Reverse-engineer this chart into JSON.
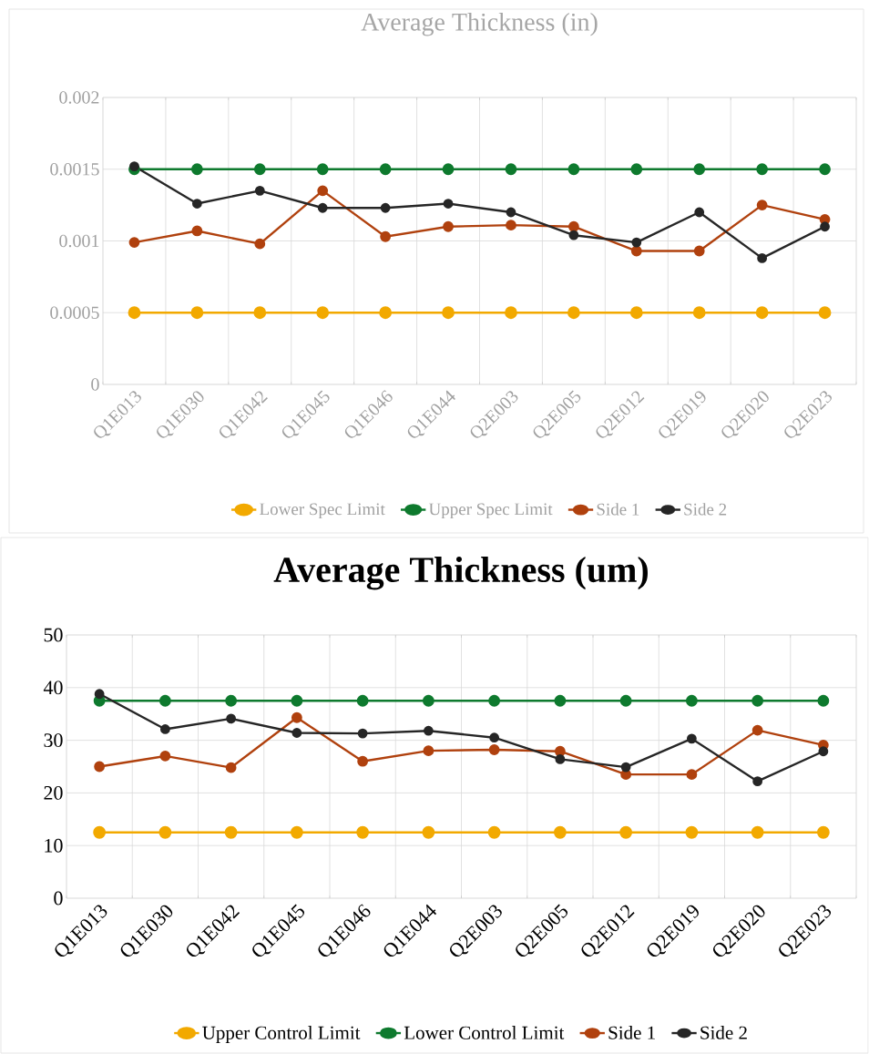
{
  "chart_data": [
    {
      "type": "line",
      "title": "Average Thickness (in)",
      "categories": [
        "Q1E013",
        "Q1E030",
        "Q1E042",
        "Q1E045",
        "Q1E046",
        "Q1E044",
        "Q2E003",
        "Q2E005",
        "Q2E012",
        "Q2E019",
        "Q2E020",
        "Q2E023"
      ],
      "series": [
        {
          "name": "Lower Spec Limit",
          "color": "#f2a900",
          "values": [
            0.0005,
            0.0005,
            0.0005,
            0.0005,
            0.0005,
            0.0005,
            0.0005,
            0.0005,
            0.0005,
            0.0005,
            0.0005,
            0.0005
          ]
        },
        {
          "name": "Upper Spec Limit",
          "color": "#0e7a2e",
          "values": [
            0.0015,
            0.0015,
            0.0015,
            0.0015,
            0.0015,
            0.0015,
            0.0015,
            0.0015,
            0.0015,
            0.0015,
            0.0015,
            0.0015
          ]
        },
        {
          "name": "Side 1",
          "color": "#b0410e",
          "values": [
            0.00099,
            0.00107,
            0.00098,
            0.00135,
            0.00103,
            0.0011,
            0.00111,
            0.0011,
            0.00093,
            0.00093,
            0.00125,
            0.00115
          ]
        },
        {
          "name": "Side 2",
          "color": "#262626",
          "values": [
            0.00152,
            0.00126,
            0.00135,
            0.00123,
            0.00123,
            0.00126,
            0.0012,
            0.00104,
            0.00099,
            0.0012,
            0.00088,
            0.0011
          ]
        }
      ],
      "ylim": [
        0,
        0.002
      ],
      "yticks": [
        0,
        0.0005,
        0.001,
        0.0015,
        0.002
      ],
      "grid": true,
      "legend": "bottom",
      "marker": "circle",
      "line_style": "solid"
    },
    {
      "type": "line",
      "title": "Average Thickness (um)",
      "categories": [
        "Q1E013",
        "Q1E030",
        "Q1E042",
        "Q1E045",
        "Q1E046",
        "Q1E044",
        "Q2E003",
        "Q2E005",
        "Q2E012",
        "Q2E019",
        "Q2E020",
        "Q2E023"
      ],
      "series": [
        {
          "name": "Upper Control Limit",
          "color": "#f2a900",
          "values": [
            12.5,
            12.5,
            12.5,
            12.5,
            12.5,
            12.5,
            12.5,
            12.5,
            12.5,
            12.5,
            12.5,
            12.5
          ]
        },
        {
          "name": "Lower Control Limit",
          "color": "#0e7a2e",
          "values": [
            37.5,
            37.5,
            37.5,
            37.5,
            37.5,
            37.5,
            37.5,
            37.5,
            37.5,
            37.5,
            37.5,
            37.5
          ]
        },
        {
          "name": "Side 1",
          "color": "#b0410e",
          "values": [
            25.0,
            27.0,
            24.8,
            34.3,
            26.0,
            28.0,
            28.2,
            27.9,
            23.5,
            23.5,
            31.9,
            29.1
          ]
        },
        {
          "name": "Side 2",
          "color": "#262626",
          "values": [
            38.8,
            32.1,
            34.1,
            31.4,
            31.3,
            31.8,
            30.5,
            26.4,
            24.9,
            30.3,
            22.2,
            27.9
          ]
        }
      ],
      "ylim": [
        0,
        50
      ],
      "yticks": [
        0,
        10,
        20,
        30,
        40,
        50
      ],
      "grid": true,
      "legend": "bottom",
      "marker": "circle",
      "line_style": "solid"
    }
  ]
}
